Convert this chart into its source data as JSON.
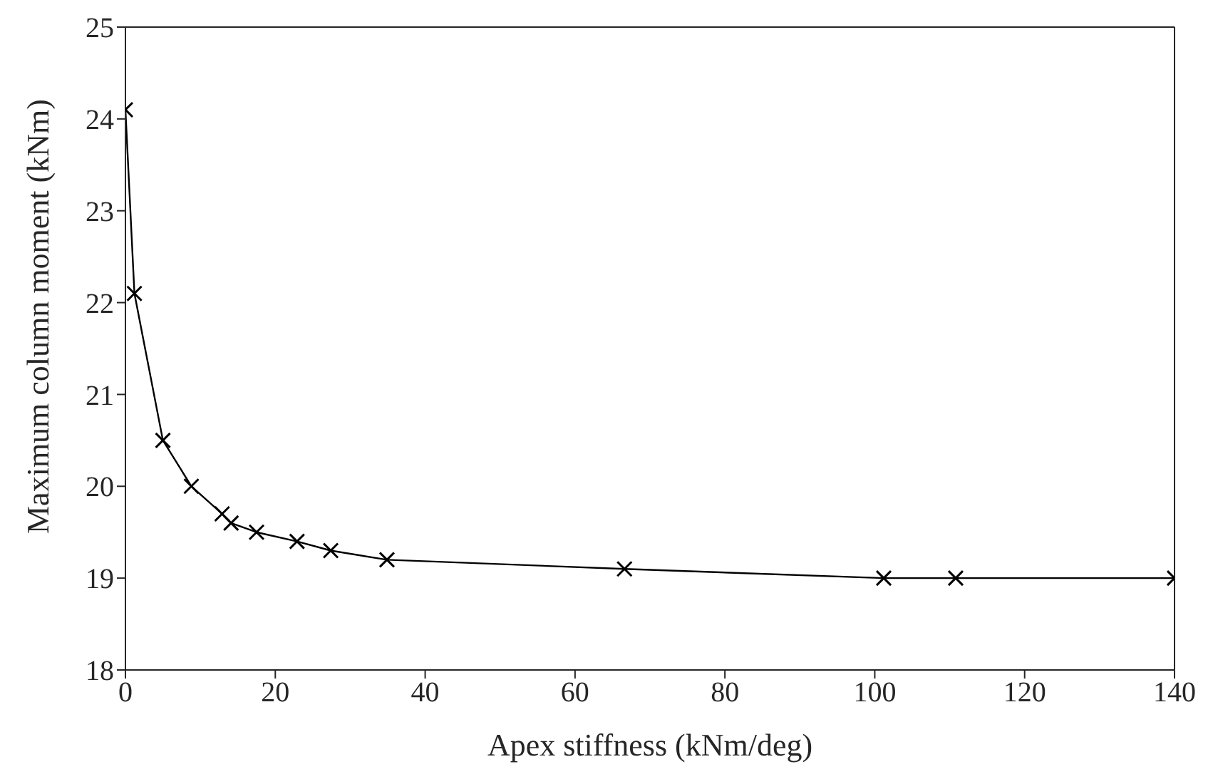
{
  "chart_data": {
    "type": "line",
    "xlabel": "Apex stiffness (kNm/deg)",
    "ylabel": "Maximum column moment (kNm)",
    "x": [
      0,
      1.2,
      5.0,
      8.8,
      12.9,
      14.1,
      17.5,
      22.9,
      27.4,
      34.9,
      66.6,
      101.2,
      110.8,
      140
    ],
    "series": [
      {
        "color": "#000000",
        "values": [
          24.1,
          22.1,
          20.5,
          20.0,
          19.7,
          19.6,
          19.5,
          19.4,
          19.3,
          19.2,
          19.1,
          19.0,
          19.0,
          19.0
        ]
      }
    ],
    "xlim": [
      0,
      140
    ],
    "xticks": [
      0,
      20,
      40,
      60,
      80,
      100,
      120,
      140
    ],
    "ylim": [
      18,
      25
    ],
    "yticks": [
      18,
      19,
      20,
      21,
      22,
      23,
      24,
      25
    ],
    "marker": "cross",
    "line_style": "solid",
    "grid": false,
    "legend": false
  }
}
